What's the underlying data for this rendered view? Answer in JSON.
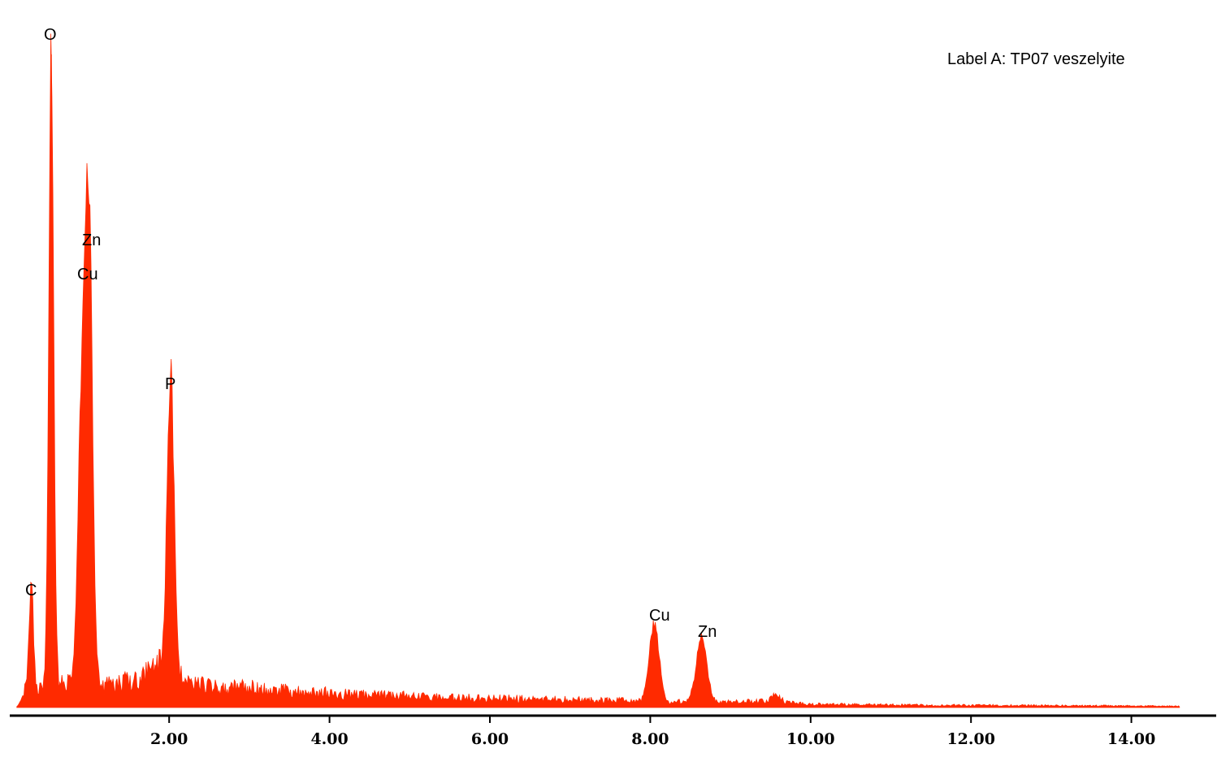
{
  "chart_data": {
    "type": "area",
    "title": "",
    "xlabel": "",
    "ylabel": "",
    "label": "Label A: TP07 veszelyite",
    "xlim": [
      0,
      14.88
    ],
    "ylim": [
      0,
      100
    ],
    "grid": false,
    "color": "#ff2a00",
    "x_ticks": [
      2,
      4,
      6,
      8,
      10,
      12,
      14
    ],
    "x_tick_labels": [
      "2.00",
      "4.00",
      "6.00",
      "8.00",
      "10.00",
      "12.00",
      "14.00"
    ],
    "background": {
      "x": [
        0.12,
        0.2,
        0.3,
        0.45,
        0.6,
        0.75,
        1.0,
        1.2,
        1.5,
        1.7,
        1.85,
        2.0,
        2.2,
        2.6,
        3.0,
        3.5,
        4.0,
        4.5,
        5.0,
        5.5,
        6.0,
        6.5,
        7.0,
        7.5,
        7.9,
        8.3,
        8.9,
        9.2,
        9.5,
        9.8,
        10.0,
        11.0,
        12.0,
        13.0,
        14.0,
        14.6
      ],
      "y": [
        0.3,
        2.5,
        3.3,
        3.5,
        3.5,
        3.5,
        3.0,
        3.3,
        4.0,
        5.0,
        6.0,
        7.0,
        3.5,
        3.2,
        3.0,
        2.6,
        2.2,
        1.9,
        1.7,
        1.5,
        1.4,
        1.3,
        1.2,
        1.1,
        1.0,
        0.9,
        0.8,
        0.9,
        1.0,
        0.7,
        0.5,
        0.4,
        0.35,
        0.3,
        0.25,
        0.2
      ]
    },
    "peaks": [
      {
        "element": "C",
        "x": 0.28,
        "height": 16.5,
        "width": 0.025,
        "labeled": true
      },
      {
        "element": "O",
        "x": 0.53,
        "height": 100,
        "width": 0.03,
        "labeled": true
      },
      {
        "element": "Cu",
        "x": 0.93,
        "height": 56,
        "width": 0.055,
        "labeled": true
      },
      {
        "element": "Zn",
        "x": 1.01,
        "height": 58,
        "width": 0.04,
        "labeled": true
      },
      {
        "element": "P",
        "x": 2.02,
        "height": 45,
        "width": 0.045,
        "labeled": true
      },
      {
        "element": "Cu",
        "x": 8.05,
        "height": 12.5,
        "width": 0.06,
        "labeled": true
      },
      {
        "element": "Zn",
        "x": 8.64,
        "height": 10.5,
        "width": 0.065,
        "labeled": true
      },
      {
        "element": "",
        "x": 9.57,
        "height": 1.2,
        "width": 0.05,
        "labeled": false
      }
    ]
  },
  "labels": {
    "O": "O",
    "Zn_low": "Zn",
    "Cu_low": "Cu",
    "P": "P",
    "C": "C",
    "Cu_high": "Cu",
    "Zn_high": "Zn"
  }
}
